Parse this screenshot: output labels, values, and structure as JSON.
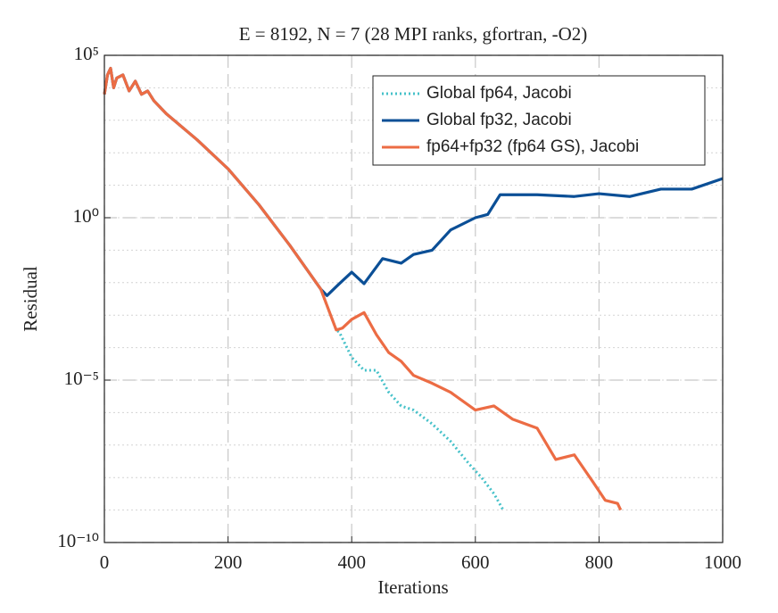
{
  "chart_data": {
    "type": "line",
    "title": "E = 8192, N = 7 (28 MPI ranks, gfortran, -O2)",
    "xlabel": "Iterations",
    "ylabel": "Residual",
    "xlim": [
      0,
      1000
    ],
    "xticks": [
      0,
      200,
      400,
      600,
      800,
      1000
    ],
    "ylim": [
      1e-10,
      100000
    ],
    "yscale": "log",
    "yticks": [
      {
        "value": 1e-10,
        "label": "10⁻¹⁰"
      },
      {
        "value": 1e-05,
        "label": "10⁻⁵"
      },
      {
        "value": 1,
        "label": "10⁰"
      },
      {
        "value": 100000,
        "label": "10⁵"
      }
    ],
    "grid": true,
    "minor_grid": true,
    "legend": "upper right",
    "series": [
      {
        "name": "Global fp64, Jacobi",
        "color": "#45c1c9",
        "style": "dotted",
        "x": [
          0,
          5,
          10,
          15,
          20,
          30,
          40,
          50,
          60,
          70,
          80,
          100,
          150,
          200,
          250,
          300,
          350,
          375,
          380,
          400,
          420,
          440,
          460,
          480,
          500,
          530,
          560,
          590,
          610,
          630,
          645
        ],
        "values": [
          6300.0,
          25000.0,
          40000.0,
          10000.0,
          20000.0,
          25000.0,
          8000.0,
          16000.0,
          6300.0,
          8000.0,
          4000.0,
          1600.0,
          250,
          32,
          2.5,
          0.14,
          0.0063,
          0.00035,
          0.0003,
          5e-05,
          2e-05,
          2e-05,
          4.2e-06,
          1.6e-06,
          1.2e-06,
          4.5e-07,
          1.3e-07,
          2.6e-08,
          1e-08,
          3.2e-09,
          1e-09
        ]
      },
      {
        "name": "Global fp32, Jacobi",
        "color": "#0b4f96",
        "style": "solid",
        "x": [
          0,
          5,
          10,
          15,
          20,
          30,
          40,
          50,
          60,
          70,
          80,
          100,
          150,
          200,
          250,
          300,
          350,
          360,
          380,
          400,
          420,
          450,
          480,
          500,
          530,
          560,
          600,
          620,
          640,
          700,
          760,
          800,
          850,
          900,
          950,
          1000
        ],
        "values": [
          6300.0,
          25000.0,
          40000.0,
          10000.0,
          20000.0,
          25000.0,
          8000.0,
          16000.0,
          6300.0,
          8000.0,
          4000.0,
          1600.0,
          250,
          32,
          2.5,
          0.14,
          0.0063,
          0.004,
          0.0093,
          0.021,
          0.0093,
          0.055,
          0.04,
          0.074,
          0.1,
          0.42,
          1,
          1.26,
          5.1,
          5.1,
          4.5,
          5.5,
          4.5,
          7.6,
          7.6,
          16
        ]
      },
      {
        "name": "fp64+fp32 (fp64 GS), Jacobi",
        "color": "#ec6c44",
        "style": "solid",
        "x": [
          0,
          5,
          10,
          15,
          20,
          30,
          40,
          50,
          60,
          70,
          80,
          100,
          150,
          200,
          250,
          300,
          350,
          375,
          385,
          400,
          420,
          440,
          460,
          480,
          500,
          530,
          560,
          600,
          630,
          660,
          700,
          730,
          760,
          790,
          810,
          830,
          835
        ],
        "values": [
          6300.0,
          25000.0,
          40000.0,
          10000.0,
          20000.0,
          25000.0,
          8000.0,
          16000.0,
          6300.0,
          8000.0,
          4000.0,
          1600.0,
          250,
          32,
          2.5,
          0.14,
          0.0063,
          0.00035,
          0.0004,
          0.00074,
          0.0012,
          0.00025,
          7e-05,
          3.8e-05,
          1.4e-05,
          8e-06,
          4.2e-06,
          1.2e-06,
          1.6e-06,
          6.3e-07,
          3.3e-07,
          3.6e-08,
          5e-08,
          7.4e-09,
          2e-09,
          1.6e-09,
          1e-09
        ]
      }
    ]
  }
}
